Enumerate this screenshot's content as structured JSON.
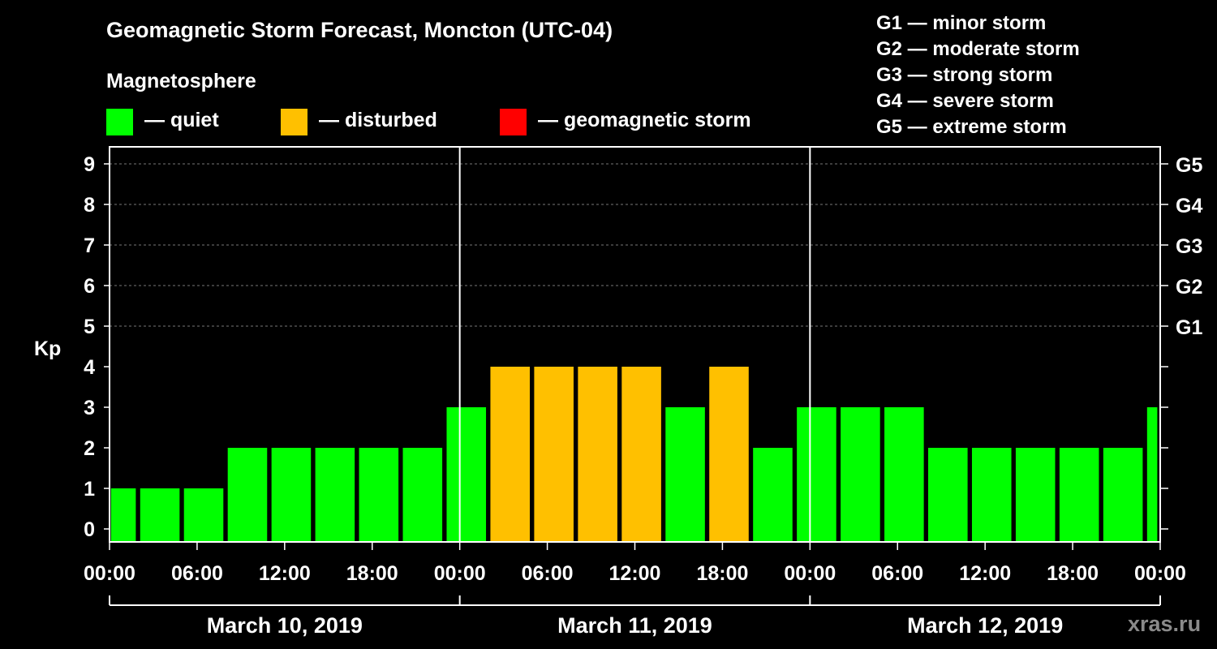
{
  "title": "Geomagnetic Storm Forecast, Moncton (UTC-04)",
  "legend": {
    "heading": "Magnetosphere",
    "items": [
      {
        "name": "quiet",
        "label": "— quiet",
        "color": "#00ff00"
      },
      {
        "name": "disturbed",
        "label": "— disturbed",
        "color": "#ffc000"
      },
      {
        "name": "storm",
        "label": "— geomagnetic storm",
        "color": "#ff0000"
      }
    ]
  },
  "storm_scale": [
    "G1 — minor storm",
    "G2 — moderate storm",
    "G3 — strong storm",
    "G4 — severe storm",
    "G5 — extreme storm"
  ],
  "watermark": "xras.ru",
  "chart_data": {
    "type": "bar",
    "title": "Geomagnetic Storm Forecast, Moncton (UTC-04)",
    "ylabel": "Kp",
    "ylim": [
      0,
      9
    ],
    "y_ticks": [
      "0",
      "1",
      "2",
      "3",
      "4",
      "5",
      "6",
      "7",
      "8",
      "9"
    ],
    "g_levels": [
      {
        "label": "G1",
        "kp": 5
      },
      {
        "label": "G2",
        "kp": 6
      },
      {
        "label": "G3",
        "kp": 7
      },
      {
        "label": "G4",
        "kp": 8
      },
      {
        "label": "G5",
        "kp": 9
      }
    ],
    "x_range_hours": [
      0,
      72
    ],
    "x_tick_labels": [
      "00:00",
      "06:00",
      "12:00",
      "18:00",
      "00:00",
      "06:00",
      "12:00",
      "18:00",
      "00:00",
      "06:00",
      "12:00",
      "18:00",
      "00:00"
    ],
    "days": [
      "March 10, 2019",
      "March 11, 2019",
      "March 12, 2019"
    ],
    "bars": [
      {
        "start": 0.1,
        "end": 1.8,
        "kp": 1,
        "status": "quiet"
      },
      {
        "start": 2.1,
        "end": 4.8,
        "kp": 1,
        "status": "quiet"
      },
      {
        "start": 5.1,
        "end": 7.8,
        "kp": 1,
        "status": "quiet"
      },
      {
        "start": 8.1,
        "end": 10.8,
        "kp": 2,
        "status": "quiet"
      },
      {
        "start": 11.1,
        "end": 13.8,
        "kp": 2,
        "status": "quiet"
      },
      {
        "start": 14.1,
        "end": 16.8,
        "kp": 2,
        "status": "quiet"
      },
      {
        "start": 17.1,
        "end": 19.8,
        "kp": 2,
        "status": "quiet"
      },
      {
        "start": 20.1,
        "end": 22.8,
        "kp": 2,
        "status": "quiet"
      },
      {
        "start": 23.1,
        "end": 25.8,
        "kp": 3,
        "status": "quiet"
      },
      {
        "start": 26.1,
        "end": 28.8,
        "kp": 4,
        "status": "disturbed"
      },
      {
        "start": 29.1,
        "end": 31.8,
        "kp": 4,
        "status": "disturbed"
      },
      {
        "start": 32.1,
        "end": 34.8,
        "kp": 4,
        "status": "disturbed"
      },
      {
        "start": 35.1,
        "end": 37.8,
        "kp": 4,
        "status": "disturbed"
      },
      {
        "start": 38.1,
        "end": 40.8,
        "kp": 3,
        "status": "quiet"
      },
      {
        "start": 41.1,
        "end": 43.8,
        "kp": 4,
        "status": "disturbed"
      },
      {
        "start": 44.1,
        "end": 46.8,
        "kp": 2,
        "status": "quiet"
      },
      {
        "start": 47.1,
        "end": 49.8,
        "kp": 3,
        "status": "quiet"
      },
      {
        "start": 50.1,
        "end": 52.8,
        "kp": 3,
        "status": "quiet"
      },
      {
        "start": 53.1,
        "end": 55.8,
        "kp": 3,
        "status": "quiet"
      },
      {
        "start": 56.1,
        "end": 58.8,
        "kp": 2,
        "status": "quiet"
      },
      {
        "start": 59.1,
        "end": 61.8,
        "kp": 2,
        "status": "quiet"
      },
      {
        "start": 62.1,
        "end": 64.8,
        "kp": 2,
        "status": "quiet"
      },
      {
        "start": 65.1,
        "end": 67.8,
        "kp": 2,
        "status": "quiet"
      },
      {
        "start": 68.1,
        "end": 70.8,
        "kp": 2,
        "status": "quiet"
      },
      {
        "start": 71.1,
        "end": 71.8,
        "kp": 3,
        "status": "quiet"
      }
    ]
  }
}
